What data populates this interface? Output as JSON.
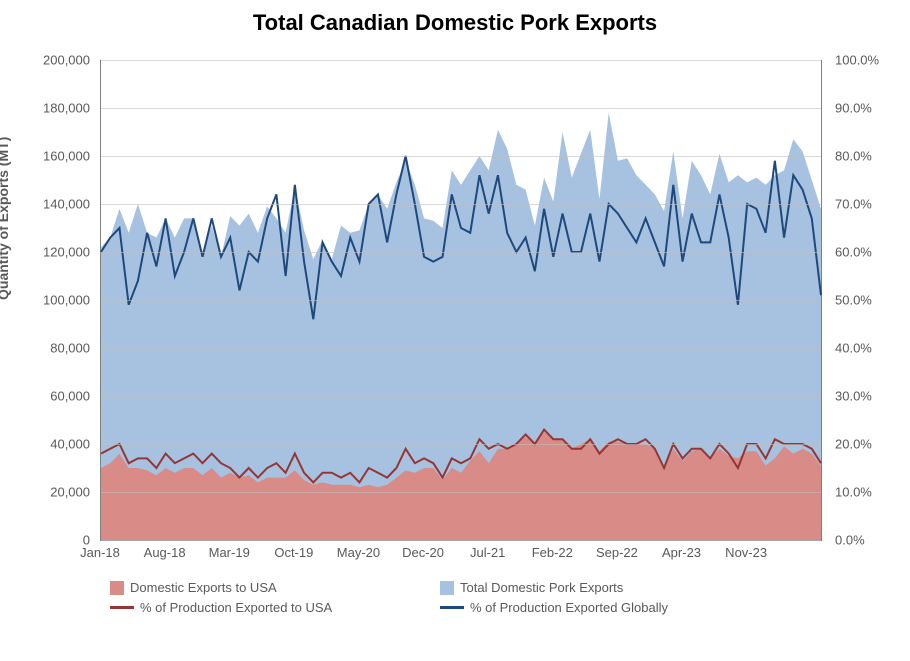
{
  "chart": {
    "title": "Total Canadian Domestic Pork Exports",
    "title_fontsize": 22,
    "title_color": "#000000",
    "background_color": "#ffffff",
    "grid_color": "#bfbfbf",
    "axis_color": "#808080",
    "text_color": "#595959",
    "y_left": {
      "label": "Quantity of Exports (MT)",
      "min": 0,
      "max": 200000,
      "tick_step": 20000,
      "tick_labels": [
        "0",
        "20,000",
        "40,000",
        "60,000",
        "80,000",
        "100,000",
        "120,000",
        "140,000",
        "160,000",
        "180,000",
        "200,000"
      ]
    },
    "y_right": {
      "min": 0,
      "max": 100,
      "tick_step": 10,
      "tick_labels": [
        "0.0%",
        "10.0%",
        "20.0%",
        "30.0%",
        "40.0%",
        "50.0%",
        "60.0%",
        "70.0%",
        "80.0%",
        "90.0%",
        "100.0%"
      ]
    },
    "x_axis": {
      "labels": [
        "Jan-18",
        "Aug-18",
        "Mar-19",
        "Oct-19",
        "May-20",
        "Dec-20",
        "Jul-21",
        "Feb-22",
        "Sep-22",
        "Apr-23",
        "Nov-23"
      ]
    },
    "series": {
      "total_exports": {
        "label": "Total Domestic Pork Exports",
        "type": "area",
        "color": "#a6c2e0",
        "values": [
          122000,
          126000,
          138000,
          128000,
          140000,
          128000,
          126000,
          134000,
          126000,
          134000,
          134000,
          120000,
          131000,
          118000,
          135000,
          131000,
          136000,
          128000,
          139000,
          134000,
          128000,
          147000,
          129000,
          117000,
          125000,
          117000,
          131000,
          128000,
          129000,
          140000,
          144000,
          138000,
          149000,
          158000,
          148000,
          134000,
          133000,
          130000,
          154000,
          148000,
          154000,
          160000,
          154000,
          171000,
          163000,
          148000,
          146000,
          131000,
          151000,
          141000,
          170000,
          151000,
          161000,
          171000,
          142000,
          178000,
          158000,
          159000,
          152000,
          148000,
          144000,
          137000,
          162000,
          134000,
          158000,
          152000,
          144000,
          161000,
          149000,
          152000,
          149000,
          151000,
          148000,
          152000,
          154000,
          167000,
          162000,
          150000,
          138000
        ]
      },
      "usa_exports": {
        "label": "Domestic Exports to USA",
        "type": "area",
        "color": "#d98b87",
        "values": [
          30000,
          32000,
          36000,
          30000,
          30000,
          29000,
          27000,
          30000,
          28000,
          30000,
          30000,
          27000,
          30000,
          26000,
          28000,
          26000,
          27000,
          24000,
          26000,
          26000,
          26000,
          29000,
          25000,
          23000,
          24000,
          23000,
          23000,
          23000,
          22000,
          23000,
          22000,
          23000,
          26000,
          29000,
          28000,
          30000,
          30000,
          25000,
          30000,
          28000,
          33000,
          37000,
          32000,
          38000,
          38000,
          40000,
          43000,
          40000,
          45000,
          42000,
          42000,
          38000,
          40000,
          42000,
          37000,
          41000,
          41000,
          40000,
          40000,
          40000,
          38000,
          30000,
          38000,
          33000,
          37000,
          38000,
          34000,
          38000,
          35000,
          34000,
          37000,
          37000,
          31000,
          34000,
          39000,
          36000,
          38000,
          36000,
          31000
        ]
      },
      "pct_global": {
        "label": "% of Production Exported Globally",
        "type": "line",
        "color": "#1f497d",
        "stroke_width": 2,
        "values": [
          60,
          63,
          65,
          49,
          54,
          64,
          57,
          67,
          55,
          60,
          67,
          59,
          67,
          59,
          63,
          52,
          60,
          58,
          67,
          72,
          55,
          74,
          58,
          46,
          62,
          58,
          55,
          63,
          58,
          70,
          72,
          62,
          72,
          80,
          70,
          59,
          58,
          59,
          72,
          65,
          64,
          76,
          68,
          76,
          64,
          60,
          63,
          56,
          69,
          59,
          68,
          60,
          60,
          68,
          58,
          70,
          68,
          65,
          62,
          67,
          62,
          57,
          74,
          58,
          68,
          62,
          62,
          72,
          63,
          49,
          70,
          69,
          64,
          79,
          63,
          76,
          73,
          67,
          51
        ]
      },
      "pct_usa": {
        "label": "% of Production Exported to USA",
        "type": "line",
        "color": "#963634",
        "stroke_width": 2,
        "values": [
          18,
          19,
          20,
          16,
          17,
          17,
          15,
          18,
          16,
          17,
          18,
          16,
          18,
          16,
          15,
          13,
          15,
          13,
          15,
          16,
          14,
          18,
          14,
          12,
          14,
          14,
          13,
          14,
          12,
          15,
          14,
          13,
          15,
          19,
          16,
          17,
          16,
          13,
          17,
          16,
          17,
          21,
          19,
          20,
          19,
          20,
          22,
          20,
          23,
          21,
          21,
          19,
          19,
          21,
          18,
          20,
          21,
          20,
          20,
          21,
          19,
          15,
          20,
          17,
          19,
          19,
          17,
          20,
          18,
          15,
          20,
          20,
          17,
          21,
          20,
          20,
          20,
          19,
          16
        ]
      }
    },
    "legend": [
      {
        "label": "Domestic Exports to USA",
        "type": "fill",
        "color": "#d98b87"
      },
      {
        "label": "Total Domestic Pork Exports",
        "type": "fill",
        "color": "#a6c2e0"
      },
      {
        "label": "% of Production Exported to USA",
        "type": "line",
        "color": "#963634"
      },
      {
        "label": "% of Production Exported Globally",
        "type": "line",
        "color": "#1f497d"
      }
    ]
  }
}
